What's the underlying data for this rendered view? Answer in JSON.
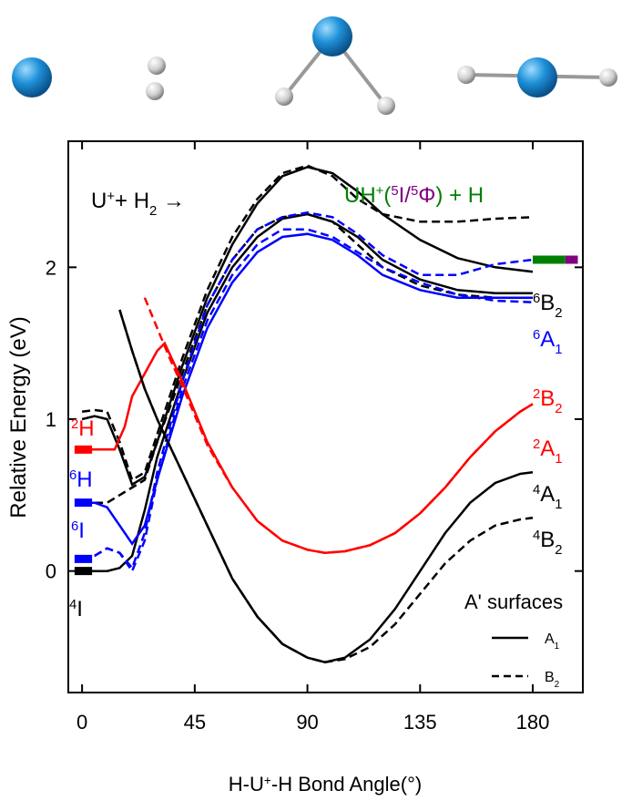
{
  "chart_data": {
    "type": "line",
    "xlabel_parts": [
      {
        "text": "H-U"
      },
      {
        "sup": "+"
      },
      {
        "text": "-H Bond Angle(°)"
      }
    ],
    "ylabel": "Relative Energy (eV)",
    "xlim": [
      -5.5,
      200
    ],
    "ylim": [
      -0.8,
      2.83
    ],
    "xticks": [
      0,
      45,
      90,
      135,
      180
    ],
    "yticks": [
      0,
      1,
      2
    ],
    "series": [
      {
        "color": "#000000",
        "dash": false,
        "x": [
          0,
          5,
          10,
          15,
          20,
          25,
          30,
          40,
          50,
          60,
          70,
          80,
          90,
          100,
          110,
          120,
          135,
          150,
          165,
          180
        ],
        "values": [
          1.0,
          1.02,
          1.0,
          0.8,
          0.57,
          0.62,
          0.85,
          1.35,
          1.8,
          2.15,
          2.42,
          2.6,
          2.66,
          2.62,
          2.5,
          2.35,
          2.18,
          2.06,
          2.0,
          1.97
        ]
      },
      {
        "color": "#000000",
        "dash": true,
        "x": [
          0,
          5,
          10,
          15,
          20,
          25,
          30,
          40,
          50,
          60,
          70,
          80,
          90,
          100,
          110,
          120,
          135,
          150,
          165,
          180
        ],
        "values": [
          1.05,
          1.06,
          1.05,
          0.85,
          0.6,
          0.65,
          0.9,
          1.4,
          1.85,
          2.2,
          2.45,
          2.62,
          2.67,
          2.6,
          2.45,
          2.35,
          2.3,
          2.3,
          2.32,
          2.33
        ]
      },
      {
        "color": "#000000",
        "dash": false,
        "x": [
          0,
          5,
          10,
          15,
          20,
          25,
          30,
          40,
          50,
          60,
          70,
          80,
          90,
          100,
          110,
          120,
          135,
          150,
          165,
          180
        ],
        "values": [
          0,
          0,
          0,
          0.02,
          0.1,
          0.4,
          0.75,
          1.25,
          1.7,
          2.0,
          2.2,
          2.32,
          2.35,
          2.3,
          2.2,
          2.05,
          1.92,
          1.85,
          1.83,
          1.83
        ]
      },
      {
        "color": "#000000",
        "dash": true,
        "x": [
          0,
          5,
          10,
          15,
          20,
          25,
          30,
          40,
          50,
          60,
          70,
          80,
          90,
          100,
          110,
          120,
          135,
          150,
          165,
          180
        ],
        "values": [
          0.45,
          0.45,
          0.45,
          0.5,
          0.55,
          0.6,
          0.85,
          1.3,
          1.75,
          2.05,
          2.25,
          2.33,
          2.35,
          2.3,
          2.15,
          2.0,
          1.88,
          1.82,
          1.8,
          1.8
        ]
      },
      {
        "color": "#0000ff",
        "dash": false,
        "x": [
          0,
          5,
          10,
          15,
          20,
          25,
          30,
          40,
          50,
          60,
          70,
          80,
          90,
          100,
          110,
          120,
          135,
          150,
          165,
          180
        ],
        "values": [
          0.45,
          0.45,
          0.42,
          0.3,
          0.18,
          0.3,
          0.6,
          1.15,
          1.6,
          1.9,
          2.1,
          2.2,
          2.22,
          2.18,
          2.08,
          1.95,
          1.85,
          1.8,
          1.8,
          1.8
        ]
      },
      {
        "color": "#0000ff",
        "dash": true,
        "x": [
          0,
          5,
          10,
          15,
          20,
          25,
          30,
          40,
          50,
          60,
          70,
          80,
          90,
          100,
          110,
          120,
          135,
          150,
          165,
          180
        ],
        "values": [
          0.08,
          0.1,
          0.15,
          0.12,
          0.0,
          0.2,
          0.6,
          1.2,
          1.65,
          1.95,
          2.15,
          2.25,
          2.25,
          2.2,
          2.1,
          2.0,
          1.9,
          1.82,
          1.78,
          1.77
        ]
      },
      {
        "color": "#0000ff",
        "dash": true,
        "x": [
          0,
          5,
          10,
          15,
          20,
          25,
          30,
          40,
          50,
          60,
          70,
          80,
          90,
          100,
          110,
          120,
          135,
          150,
          165,
          180
        ],
        "values": [
          0.08,
          0.1,
          0.15,
          0.12,
          0.02,
          0.25,
          0.65,
          1.25,
          1.75,
          2.05,
          2.25,
          2.33,
          2.36,
          2.33,
          2.22,
          2.08,
          1.95,
          1.95,
          2.02,
          2.05
        ]
      },
      {
        "color": "#ff0000",
        "dash": false,
        "x": [
          0,
          5,
          10,
          13,
          17,
          20,
          25,
          30,
          33,
          40,
          50,
          60,
          70,
          80,
          90,
          97,
          105,
          115,
          125,
          135,
          145,
          155,
          165,
          175,
          180
        ],
        "values": [
          0.8,
          0.8,
          0.8,
          0.8,
          0.95,
          1.15,
          1.3,
          1.45,
          1.5,
          1.25,
          0.85,
          0.55,
          0.33,
          0.2,
          0.14,
          0.12,
          0.13,
          0.17,
          0.25,
          0.38,
          0.55,
          0.75,
          0.92,
          1.05,
          1.1
        ]
      },
      {
        "color": "#ff0000",
        "dash": true,
        "x": [
          25,
          30,
          35,
          40,
          50,
          60,
          70,
          80,
          90,
          97,
          105,
          115,
          125,
          135,
          145,
          155,
          165,
          175,
          180
        ],
        "values": [
          1.8,
          1.6,
          1.4,
          1.22,
          0.83,
          0.55,
          0.33,
          0.2,
          0.14,
          0.12,
          0.13,
          0.17,
          0.25,
          0.38,
          0.55,
          0.75,
          0.92,
          1.05,
          1.1
        ]
      },
      {
        "color": "#000000",
        "dash": false,
        "x": [
          15,
          20,
          25,
          30,
          40,
          50,
          60,
          70,
          80,
          90,
          97,
          105,
          115,
          125,
          135,
          145,
          155,
          165,
          175,
          180
        ],
        "values": [
          1.72,
          1.45,
          1.2,
          1.0,
          0.65,
          0.3,
          -0.05,
          -0.3,
          -0.48,
          -0.57,
          -0.6,
          -0.57,
          -0.45,
          -0.25,
          0.0,
          0.25,
          0.45,
          0.58,
          0.64,
          0.65
        ]
      },
      {
        "color": "#000000",
        "dash": true,
        "x": [
          15,
          20,
          25,
          30,
          40,
          50,
          60,
          70,
          80,
          90,
          97,
          105,
          115,
          125,
          135,
          145,
          155,
          165,
          175,
          180
        ],
        "values": [
          1.72,
          1.45,
          1.2,
          1.0,
          0.65,
          0.3,
          -0.05,
          -0.3,
          -0.48,
          -0.57,
          -0.6,
          -0.58,
          -0.5,
          -0.35,
          -0.15,
          0.05,
          0.2,
          0.3,
          0.34,
          0.35
        ]
      }
    ],
    "levels": [
      {
        "x": [
          -3,
          4
        ],
        "value": 0.8,
        "color": "#ff0000"
      },
      {
        "x": [
          -3,
          4
        ],
        "value": 0.45,
        "color": "#0000ff"
      },
      {
        "x": [
          -3,
          4
        ],
        "value": 0.08,
        "color": "#0000ff"
      },
      {
        "x": [
          -3,
          4
        ],
        "value": 0,
        "color": "#000000"
      },
      {
        "x": [
          180,
          193
        ],
        "value": 2.05,
        "color": "#008000"
      },
      {
        "x": [
          193,
          198
        ],
        "value": 2.05,
        "color": "#800080"
      }
    ],
    "annotations": [
      {
        "color": "#000000",
        "parts": [
          {
            "text": "U"
          },
          {
            "sup": "+"
          },
          {
            "text": "+ H"
          },
          {
            "sub": "2"
          },
          {
            "text": " →"
          }
        ]
      },
      {
        "color": "#008000",
        "parts": [
          {
            "text": "UH"
          },
          {
            "sup": "+"
          },
          {
            "text": "("
          },
          {
            "sup": "5",
            "color": "#800080"
          },
          {
            "text": "I/",
            "color": "#800080"
          },
          {
            "sup": "5",
            "color": "#800080"
          },
          {
            "text": "Φ",
            "color": "#800080"
          },
          {
            "text": ") + H"
          }
        ]
      },
      {
        "color": "#000000",
        "parts": [
          {
            "sup": "6"
          },
          {
            "text": "B"
          },
          {
            "sub": "2"
          }
        ]
      },
      {
        "color": "#0000ff",
        "parts": [
          {
            "sup": "6"
          },
          {
            "text": "A"
          },
          {
            "sub": "1"
          }
        ]
      },
      {
        "color": "#ff0000",
        "parts": [
          {
            "sup": "2"
          },
          {
            "text": "B"
          },
          {
            "sub": "2"
          }
        ]
      },
      {
        "color": "#ff0000",
        "parts": [
          {
            "sup": "2"
          },
          {
            "text": "A"
          },
          {
            "sub": "1"
          }
        ]
      },
      {
        "color": "#000000",
        "parts": [
          {
            "sup": "4"
          },
          {
            "text": "A"
          },
          {
            "sub": "1"
          }
        ]
      },
      {
        "color": "#000000",
        "parts": [
          {
            "sup": "4"
          },
          {
            "text": "B"
          },
          {
            "sub": "2"
          }
        ]
      },
      {
        "color": "#ff0000",
        "parts": [
          {
            "sup": "2"
          },
          {
            "text": "H"
          }
        ]
      },
      {
        "color": "#0000ff",
        "parts": [
          {
            "sup": "6"
          },
          {
            "text": "H"
          }
        ]
      },
      {
        "color": "#0000ff",
        "parts": [
          {
            "sup": "6"
          },
          {
            "text": "I"
          }
        ]
      },
      {
        "color": "#000000",
        "parts": [
          {
            "sup": "4"
          },
          {
            "text": "I"
          }
        ]
      }
    ],
    "legend": {
      "title": "A' surfaces",
      "items": [
        {
          "dash": false,
          "parts": [
            {
              "text": "A"
            },
            {
              "sub": "1"
            }
          ]
        },
        {
          "dash": true,
          "parts": [
            {
              "text": "B"
            },
            {
              "sub": "2"
            }
          ]
        }
      ]
    }
  }
}
